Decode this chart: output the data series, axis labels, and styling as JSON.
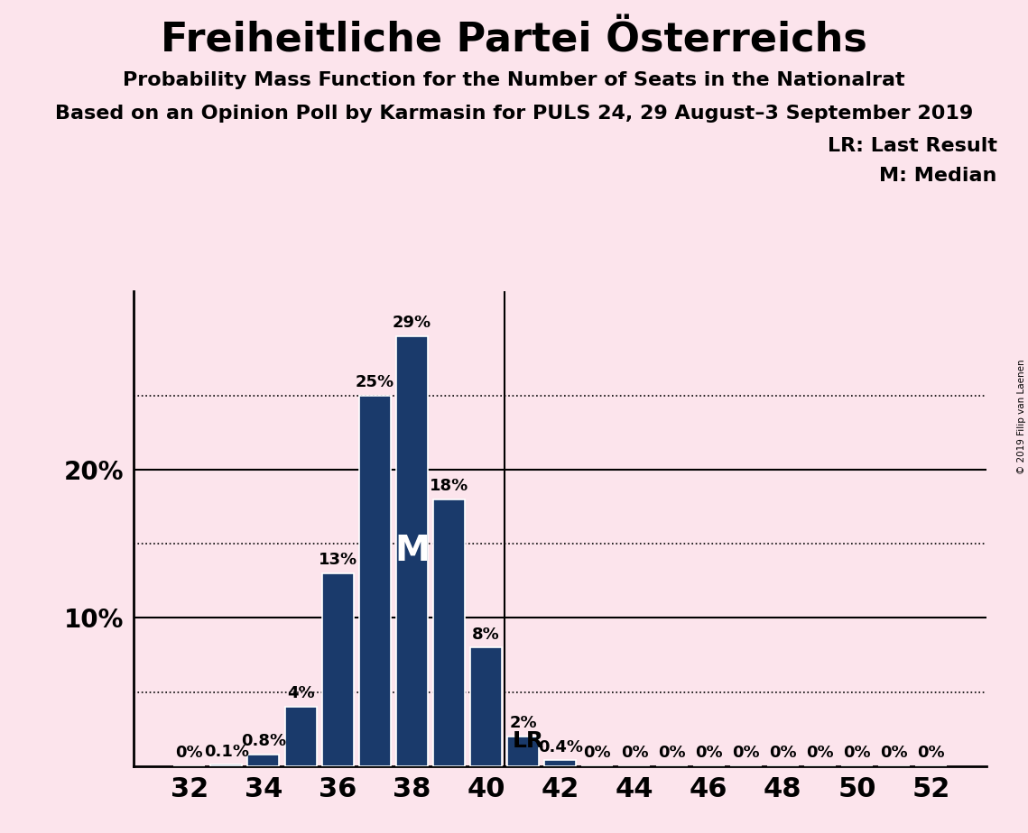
{
  "title": "Freiheitliche Partei Österreichs",
  "subtitle1": "Probability Mass Function for the Number of Seats in the Nationalrat",
  "subtitle2": "Based on an Opinion Poll by Karmasin for PULS 24, 29 August–3 September 2019",
  "copyright": "© 2019 Filip van Laenen",
  "background_color": "#fce4ec",
  "bar_color": "#1a3a6b",
  "bar_edge_color": "#ffffff",
  "seats": [
    32,
    33,
    34,
    35,
    36,
    37,
    38,
    39,
    40,
    41,
    42,
    43,
    44,
    45,
    46,
    47,
    48,
    49,
    50,
    51,
    52
  ],
  "probabilities": [
    0.0,
    0.1,
    0.8,
    4.0,
    13.0,
    25.0,
    29.0,
    18.0,
    8.0,
    2.0,
    0.4,
    0.0,
    0.0,
    0.0,
    0.0,
    0.0,
    0.0,
    0.0,
    0.0,
    0.0,
    0.0
  ],
  "labels": [
    "0%",
    "0.1%",
    "0.8%",
    "4%",
    "13%",
    "25%",
    "29%",
    "18%",
    "8%",
    "2%",
    "0.4%",
    "0%",
    "0%",
    "0%",
    "0%",
    "0%",
    "0%",
    "0%",
    "0%",
    "0%",
    "0%"
  ],
  "median_seat": 38,
  "last_result_seat": 40,
  "xtick_seats": [
    32,
    34,
    36,
    38,
    40,
    42,
    44,
    46,
    48,
    50,
    52
  ],
  "solid_gridlines": [
    10,
    20
  ],
  "dotted_gridlines": [
    5,
    15,
    25
  ],
  "ylim": [
    0,
    32
  ],
  "title_fontsize": 32,
  "subtitle_fontsize": 16,
  "bar_label_fontsize": 13,
  "ytick_fontsize": 20,
  "xtick_fontsize": 22
}
